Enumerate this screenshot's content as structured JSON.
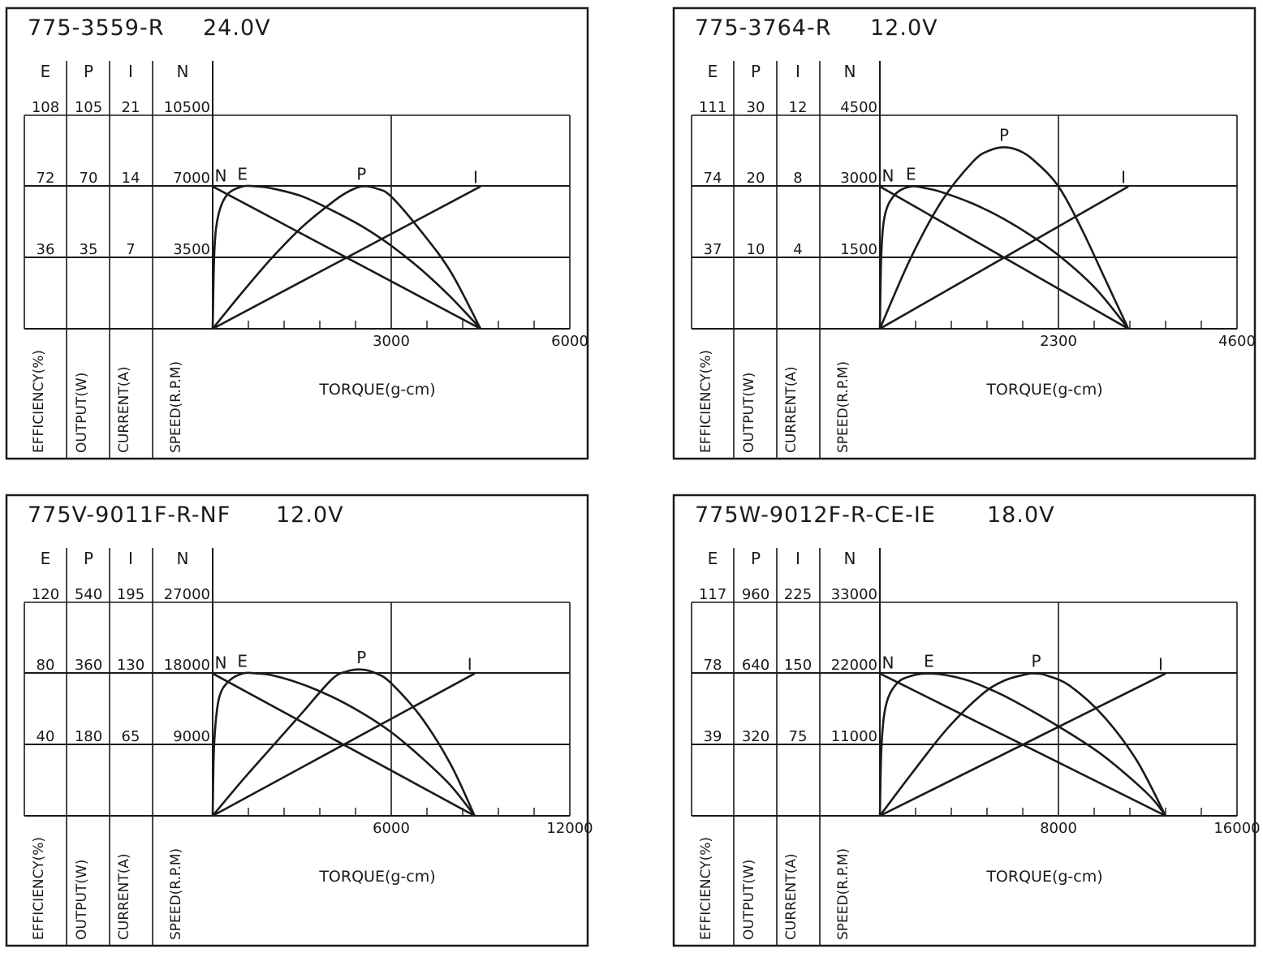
{
  "chart_data": [
    {
      "type": "line",
      "title": "775-3559-R",
      "voltage": "24.0V",
      "column_heads": [
        "E",
        "P",
        "I",
        "N"
      ],
      "column_labels": [
        "EFFICIENCY(%)",
        "OUTPUT(W)",
        "CURRENT(A)",
        "SPEED(R.P.M)"
      ],
      "row_values": {
        "E": [
          "108",
          "72",
          "36"
        ],
        "P": [
          "105",
          "70",
          "35"
        ],
        "I": [
          "21",
          "14",
          "7"
        ],
        "N": [
          "10500",
          "7000",
          "3500"
        ]
      },
      "xlabel": "TORQUE(g-cm)",
      "xlim": [
        0,
        6000
      ],
      "xticks": [
        "3000",
        "6000"
      ],
      "grid": true,
      "series": [
        {
          "name": "N",
          "unit_col": "N",
          "points": [
            [
              0,
              7000
            ],
            [
              4500,
              0
            ]
          ]
        },
        {
          "name": "I",
          "unit_col": "I",
          "points": [
            [
              0,
              0
            ],
            [
              4500,
              14
            ]
          ]
        },
        {
          "name": "P",
          "unit_col": "P",
          "points": [
            [
              0,
              0
            ],
            [
              500,
              18
            ],
            [
              1000,
              35
            ],
            [
              1500,
              50
            ],
            [
              2000,
              62
            ],
            [
              2250,
              67
            ],
            [
              2500,
              70
            ],
            [
              2750,
              69
            ],
            [
              3000,
              65
            ],
            [
              3500,
              48
            ],
            [
              4000,
              28
            ],
            [
              4500,
              0
            ]
          ]
        },
        {
          "name": "E",
          "unit_col": "E",
          "points": [
            [
              0,
              0
            ],
            [
              30,
              40
            ],
            [
              100,
              58
            ],
            [
              250,
              68
            ],
            [
              500,
              72
            ],
            [
              750,
              72
            ],
            [
              1000,
              71
            ],
            [
              1500,
              67
            ],
            [
              2000,
              60
            ],
            [
              2500,
              52
            ],
            [
              3000,
              42
            ],
            [
              3500,
              30
            ],
            [
              4000,
              16
            ],
            [
              4500,
              0
            ]
          ]
        }
      ]
    },
    {
      "type": "line",
      "title": "775-3764-R",
      "voltage": "12.0V",
      "column_heads": [
        "E",
        "P",
        "I",
        "N"
      ],
      "column_labels": [
        "EFFICIENCY(%)",
        "OUTPUT(W)",
        "CURRENT(A)",
        "SPEED(R.P.M)"
      ],
      "row_values": {
        "E": [
          "111",
          "74",
          "37"
        ],
        "P": [
          "30",
          "20",
          "10"
        ],
        "I": [
          "12",
          "8",
          "4"
        ],
        "N": [
          "4500",
          "3000",
          "1500"
        ]
      },
      "xlabel": "TORQUE(g-cm)",
      "xlim": [
        0,
        4600
      ],
      "xticks": [
        "2300",
        "4600"
      ],
      "grid": true,
      "series": [
        {
          "name": "N",
          "unit_col": "N",
          "points": [
            [
              0,
              3000
            ],
            [
              3200,
              0
            ]
          ]
        },
        {
          "name": "I",
          "unit_col": "I",
          "points": [
            [
              0,
              0
            ],
            [
              3200,
              8
            ]
          ]
        },
        {
          "name": "P",
          "unit_col": "P",
          "points": [
            [
              0,
              0
            ],
            [
              400,
              10
            ],
            [
              800,
              18
            ],
            [
              1200,
              23.5
            ],
            [
              1400,
              25
            ],
            [
              1600,
              25.5
            ],
            [
              1800,
              25
            ],
            [
              2000,
              23.5
            ],
            [
              2300,
              20
            ],
            [
              2600,
              14
            ],
            [
              2900,
              7
            ],
            [
              3200,
              0
            ]
          ]
        },
        {
          "name": "E",
          "unit_col": "E",
          "points": [
            [
              0,
              0
            ],
            [
              20,
              40
            ],
            [
              70,
              60
            ],
            [
              200,
              70
            ],
            [
              400,
              74
            ],
            [
              600,
              73
            ],
            [
              800,
              71
            ],
            [
              1200,
              65
            ],
            [
              1600,
              57
            ],
            [
              2000,
              47
            ],
            [
              2400,
              35
            ],
            [
              2800,
              20
            ],
            [
              3200,
              0
            ]
          ]
        }
      ]
    },
    {
      "type": "line",
      "title": "775V-9011F-R-NF",
      "voltage": "12.0V",
      "column_heads": [
        "E",
        "P",
        "I",
        "N"
      ],
      "column_labels": [
        "EFFICIENCY(%)",
        "OUTPUT(W)",
        "CURRENT(A)",
        "SPEED(R.P.M)"
      ],
      "row_values": {
        "E": [
          "120",
          "80",
          "40"
        ],
        "P": [
          "540",
          "360",
          "180"
        ],
        "I": [
          "195",
          "130",
          "65"
        ],
        "N": [
          "27000",
          "18000",
          "9000"
        ]
      },
      "xlabel": "TORQUE(g-cm)",
      "xlim": [
        0,
        12000
      ],
      "xticks": [
        "6000",
        "12000"
      ],
      "grid": true,
      "series": [
        {
          "name": "N",
          "unit_col": "N",
          "points": [
            [
              0,
              18000
            ],
            [
              8800,
              0
            ]
          ]
        },
        {
          "name": "I",
          "unit_col": "I",
          "points": [
            [
              0,
              0
            ],
            [
              8800,
              130
            ]
          ]
        },
        {
          "name": "P",
          "unit_col": "P",
          "points": [
            [
              0,
              0
            ],
            [
              1000,
              90
            ],
            [
              2000,
              175
            ],
            [
              3000,
              260
            ],
            [
              4000,
              345
            ],
            [
              4500,
              365
            ],
            [
              5000,
              370
            ],
            [
              5500,
              360
            ],
            [
              6000,
              335
            ],
            [
              7000,
              250
            ],
            [
              8000,
              130
            ],
            [
              8800,
              0
            ]
          ]
        },
        {
          "name": "E",
          "unit_col": "E",
          "points": [
            [
              0,
              0
            ],
            [
              50,
              40
            ],
            [
              200,
              65
            ],
            [
              500,
              75
            ],
            [
              1000,
              80
            ],
            [
              1500,
              80
            ],
            [
              2000,
              79
            ],
            [
              3000,
              74
            ],
            [
              4000,
              67
            ],
            [
              5000,
              58
            ],
            [
              6000,
              47
            ],
            [
              7000,
              33
            ],
            [
              8000,
              17
            ],
            [
              8800,
              0
            ]
          ]
        }
      ]
    },
    {
      "type": "line",
      "title": "775W-9012F-R-CE-IE",
      "voltage": "18.0V",
      "column_heads": [
        "E",
        "P",
        "I",
        "N"
      ],
      "column_labels": [
        "EFFICIENCY(%)",
        "OUTPUT(W)",
        "CURRENT(A)",
        "SPEED(R.P.M)"
      ],
      "row_values": {
        "E": [
          "117",
          "78",
          "39"
        ],
        "P": [
          "960",
          "640",
          "320"
        ],
        "I": [
          "225",
          "150",
          "75"
        ],
        "N": [
          "33000",
          "22000",
          "11000"
        ]
      },
      "xlabel": "TORQUE(g-cm)",
      "xlim": [
        0,
        16000
      ],
      "xticks": [
        "8000",
        "16000"
      ],
      "grid": true,
      "series": [
        {
          "name": "N",
          "unit_col": "N",
          "points": [
            [
              0,
              22000
            ],
            [
              12800,
              0
            ]
          ]
        },
        {
          "name": "I",
          "unit_col": "I",
          "points": [
            [
              0,
              0
            ],
            [
              12800,
              150
            ]
          ]
        },
        {
          "name": "P",
          "unit_col": "P",
          "points": [
            [
              0,
              0
            ],
            [
              1500,
              200
            ],
            [
              3000,
              390
            ],
            [
              4500,
              540
            ],
            [
              5500,
              605
            ],
            [
              6500,
              635
            ],
            [
              7000,
              640
            ],
            [
              7500,
              630
            ],
            [
              8500,
              585
            ],
            [
              10000,
              450
            ],
            [
              11500,
              250
            ],
            [
              12800,
              0
            ]
          ]
        },
        {
          "name": "E",
          "unit_col": "E",
          "points": [
            [
              0,
              0
            ],
            [
              80,
              40
            ],
            [
              300,
              62
            ],
            [
              800,
              73
            ],
            [
              1500,
              77
            ],
            [
              2200,
              78
            ],
            [
              3000,
              77
            ],
            [
              4000,
              74
            ],
            [
              5000,
              69
            ],
            [
              6000,
              63
            ],
            [
              8000,
              49
            ],
            [
              10000,
              33
            ],
            [
              12000,
              12
            ],
            [
              12800,
              0
            ]
          ]
        }
      ]
    }
  ]
}
